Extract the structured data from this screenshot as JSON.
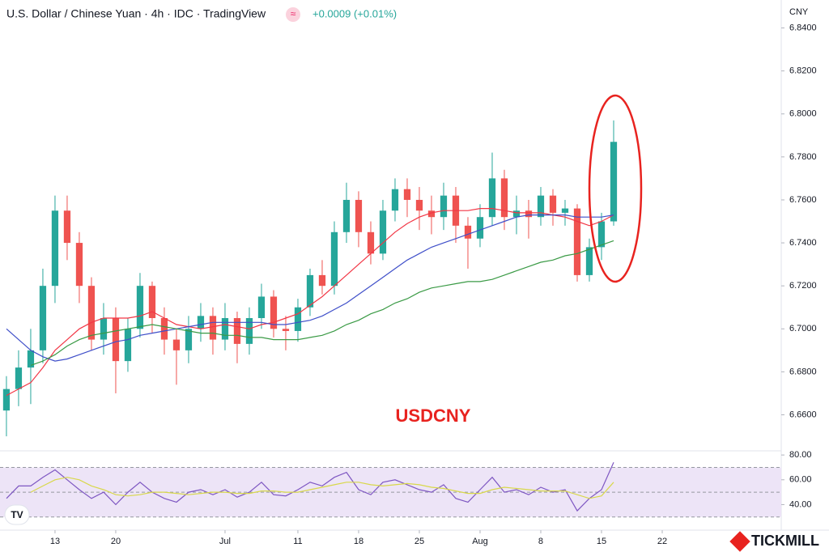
{
  "chart_data": [
    {
      "type": "candlestick",
      "title": "U.S. Dollar / Chinese Yuan · 4h · IDC · TradingView",
      "subtitle": "+0.0009 (+0.01%)",
      "axis_unit": "CNY",
      "annotation": "USDCNY",
      "up_color": "#26a69a",
      "down_color": "#ef5350",
      "x": [
        -4,
        -3,
        -2,
        -1,
        0,
        1,
        2,
        3,
        4,
        5,
        6,
        7,
        8,
        9,
        10,
        11,
        12,
        13,
        14,
        15,
        16,
        17,
        18,
        19,
        20,
        21,
        22,
        23,
        24,
        25,
        26,
        27,
        28,
        29,
        30,
        31,
        32,
        33,
        34,
        35,
        36,
        37,
        38,
        39,
        40,
        41,
        42,
        43,
        44,
        45,
        46
      ],
      "open": [
        6.662,
        6.672,
        6.682,
        6.69,
        6.72,
        6.755,
        6.74,
        6.72,
        6.695,
        6.705,
        6.685,
        6.7,
        6.72,
        6.705,
        6.695,
        6.69,
        6.7,
        6.706,
        6.695,
        6.705,
        6.693,
        6.705,
        6.715,
        6.7,
        6.699,
        6.71,
        6.725,
        6.72,
        6.745,
        6.76,
        6.745,
        6.735,
        6.755,
        6.765,
        6.76,
        6.755,
        6.752,
        6.762,
        6.748,
        6.742,
        6.752,
        6.77,
        6.752,
        6.755,
        6.752,
        6.762,
        6.754,
        6.756,
        6.725,
        6.738,
        6.75
      ],
      "high": [
        6.678,
        6.69,
        6.7,
        6.728,
        6.762,
        6.762,
        6.745,
        6.724,
        6.712,
        6.71,
        6.705,
        6.726,
        6.722,
        6.71,
        6.7,
        6.706,
        6.712,
        6.71,
        6.712,
        6.708,
        6.71,
        6.721,
        6.718,
        6.706,
        6.714,
        6.728,
        6.732,
        6.75,
        6.768,
        6.764,
        6.75,
        6.76,
        6.77,
        6.77,
        6.766,
        6.762,
        6.768,
        6.766,
        6.752,
        6.758,
        6.782,
        6.774,
        6.762,
        6.76,
        6.766,
        6.765,
        6.76,
        6.758,
        6.742,
        6.754,
        6.797
      ],
      "low": [
        6.65,
        6.664,
        6.665,
        6.684,
        6.712,
        6.732,
        6.712,
        6.69,
        6.688,
        6.67,
        6.68,
        6.696,
        6.698,
        6.688,
        6.674,
        6.684,
        6.694,
        6.688,
        6.69,
        6.684,
        6.688,
        6.7,
        6.696,
        6.69,
        6.694,
        6.706,
        6.716,
        6.716,
        6.74,
        6.738,
        6.73,
        6.732,
        6.75,
        6.752,
        6.746,
        6.744,
        6.746,
        6.74,
        6.728,
        6.738,
        6.748,
        6.746,
        6.744,
        6.742,
        6.748,
        6.748,
        6.748,
        6.722,
        6.722,
        6.732,
        6.748
      ],
      "close": [
        6.672,
        6.682,
        6.69,
        6.72,
        6.755,
        6.74,
        6.72,
        6.695,
        6.705,
        6.685,
        6.7,
        6.72,
        6.705,
        6.695,
        6.69,
        6.7,
        6.706,
        6.695,
        6.705,
        6.693,
        6.705,
        6.715,
        6.7,
        6.699,
        6.71,
        6.725,
        6.72,
        6.745,
        6.76,
        6.745,
        6.735,
        6.755,
        6.765,
        6.76,
        6.755,
        6.752,
        6.762,
        6.748,
        6.742,
        6.752,
        6.77,
        6.752,
        6.755,
        6.752,
        6.762,
        6.754,
        6.756,
        6.725,
        6.738,
        6.75,
        6.787
      ],
      "series": [
        {
          "color": "#f23645",
          "values": [
            6.669,
            6.672,
            6.675,
            6.682,
            6.69,
            6.695,
            6.7,
            6.703,
            6.705,
            6.705,
            6.705,
            6.706,
            6.708,
            6.705,
            6.702,
            6.701,
            6.7,
            6.701,
            6.702,
            6.701,
            6.7,
            6.702,
            6.703,
            6.705,
            6.707,
            6.711,
            6.715,
            6.72,
            6.725,
            6.73,
            6.735,
            6.74,
            6.745,
            6.749,
            6.752,
            6.754,
            6.755,
            6.755,
            6.755,
            6.756,
            6.756,
            6.755,
            6.754,
            6.754,
            6.754,
            6.753,
            6.752,
            6.75,
            6.748,
            6.75,
            6.753
          ]
        },
        {
          "color": "#3f4fc9",
          "values": [
            6.7,
            6.695,
            6.69,
            6.687,
            6.685,
            6.686,
            6.688,
            6.69,
            6.692,
            6.694,
            6.695,
            6.697,
            6.698,
            6.699,
            6.7,
            6.701,
            6.702,
            6.703,
            6.703,
            6.703,
            6.703,
            6.703,
            6.702,
            6.702,
            6.703,
            6.704,
            6.706,
            6.709,
            6.712,
            6.716,
            6.72,
            6.724,
            6.728,
            6.732,
            6.735,
            6.738,
            6.74,
            6.742,
            6.744,
            6.746,
            6.748,
            6.75,
            6.752,
            6.753,
            6.753,
            6.753,
            6.753,
            6.752,
            6.752,
            6.752,
            6.753
          ]
        },
        {
          "color": "#3a9a45",
          "values": [
            null,
            null,
            6.683,
            6.685,
            6.688,
            6.692,
            6.695,
            6.697,
            6.698,
            6.699,
            6.7,
            6.701,
            6.702,
            6.701,
            6.7,
            6.699,
            6.698,
            6.698,
            6.697,
            6.697,
            6.696,
            6.696,
            6.695,
            6.695,
            6.695,
            6.696,
            6.697,
            6.699,
            6.702,
            6.704,
            6.707,
            6.709,
            6.712,
            6.714,
            6.717,
            6.719,
            6.72,
            6.721,
            6.722,
            6.722,
            6.723,
            6.725,
            6.727,
            6.729,
            6.731,
            6.732,
            6.734,
            6.735,
            6.737,
            6.739,
            6.741
          ]
        }
      ],
      "xlim": [
        -4.53,
        59.8
      ],
      "ylim": [
        6.644,
        6.853
      ],
      "yticks": [
        {
          "value": 6.66,
          "label": "6.6600"
        },
        {
          "value": 6.68,
          "label": "6.6800"
        },
        {
          "value": 6.7,
          "label": "6.7000"
        },
        {
          "value": 6.72,
          "label": "6.7200"
        },
        {
          "value": 6.74,
          "label": "6.7400"
        },
        {
          "value": 6.76,
          "label": "6.7600"
        },
        {
          "value": 6.78,
          "label": "6.7800"
        },
        {
          "value": 6.8,
          "label": "6.8000"
        },
        {
          "value": 6.82,
          "label": "6.8200"
        },
        {
          "value": 6.84,
          "label": "6.8400"
        }
      ],
      "xticks": [
        {
          "value": 0,
          "label": "13"
        },
        {
          "value": 5,
          "label": "20"
        },
        {
          "value": 14,
          "label": "Jul"
        },
        {
          "value": 20,
          "label": "11"
        },
        {
          "value": 25,
          "label": "18"
        },
        {
          "value": 30,
          "label": "25"
        },
        {
          "value": 35,
          "label": "Aug"
        },
        {
          "value": 40,
          "label": "8"
        },
        {
          "value": 45,
          "label": "15"
        },
        {
          "value": 50,
          "label": "22"
        }
      ]
    },
    {
      "type": "line",
      "x": [
        -4,
        -3,
        -2,
        -1,
        0,
        1,
        2,
        3,
        4,
        5,
        6,
        7,
        8,
        9,
        10,
        11,
        12,
        13,
        14,
        15,
        16,
        17,
        18,
        19,
        20,
        21,
        22,
        23,
        24,
        25,
        26,
        27,
        28,
        29,
        30,
        31,
        32,
        33,
        34,
        35,
        36,
        37,
        38,
        39,
        40,
        41,
        42,
        43,
        44,
        45,
        46
      ],
      "series": [
        {
          "color": "#7e57c2",
          "values": [
            45,
            55,
            55,
            62,
            68,
            60,
            52,
            45,
            50,
            40,
            50,
            58,
            50,
            45,
            42,
            50,
            52,
            48,
            52,
            46,
            50,
            58,
            48,
            47,
            52,
            58,
            55,
            62,
            66,
            52,
            48,
            58,
            60,
            56,
            52,
            50,
            56,
            45,
            42,
            52,
            62,
            50,
            52,
            48,
            54,
            50,
            52,
            35,
            45,
            52,
            74
          ]
        },
        {
          "color": "#d8d84a",
          "values": [
            null,
            null,
            50,
            55,
            60,
            62,
            60,
            55,
            52,
            48,
            47,
            48,
            50,
            50,
            49,
            48,
            49,
            50,
            50,
            49,
            49,
            51,
            51,
            50,
            50,
            52,
            54,
            56,
            58,
            58,
            56,
            55,
            56,
            57,
            56,
            54,
            53,
            51,
            49,
            49,
            52,
            54,
            53,
            52,
            51,
            51,
            51,
            48,
            45,
            47,
            58
          ]
        }
      ],
      "levels": [
        70,
        50,
        30
      ],
      "band_color": "#ede4f7",
      "xlim": [
        -4.53,
        59.8
      ],
      "ylim": [
        20.7,
        82.7
      ],
      "yticks": [
        {
          "value": 40,
          "label": "40.00"
        },
        {
          "value": 60,
          "label": "60.00"
        },
        {
          "value": 80,
          "label": "80.00"
        }
      ]
    }
  ],
  "branding": {
    "logo": "TICKMILL"
  }
}
